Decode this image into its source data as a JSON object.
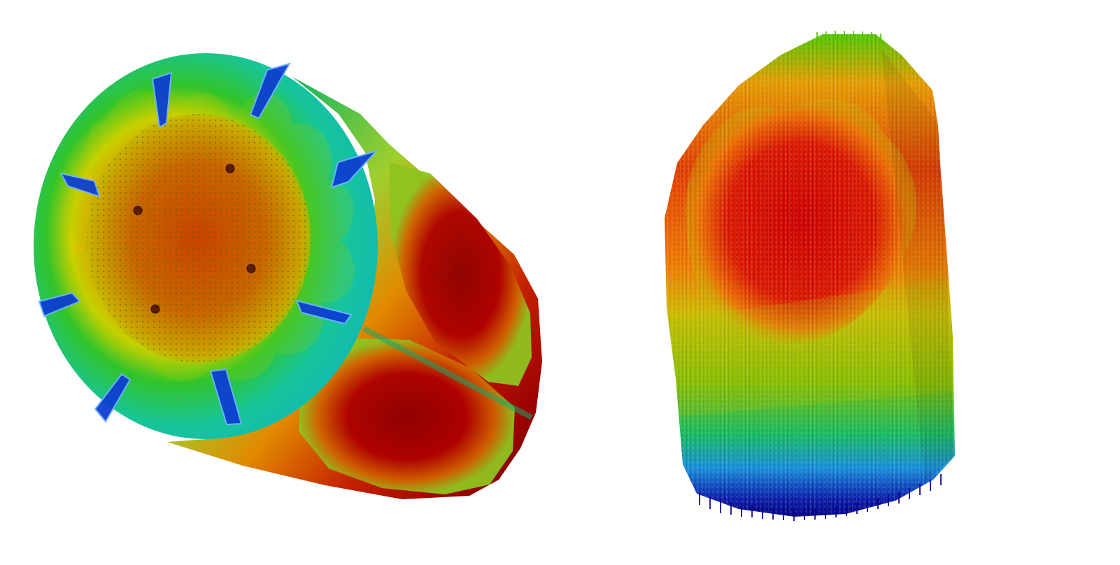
{
  "image": {
    "panels": [
      {
        "name": "cylinder-section-render",
        "colormap": [
          "#0a1fa8",
          "#2a8ad8",
          "#19c4a0",
          "#18c33a",
          "#b7d400",
          "#f7e000",
          "#ff7a00",
          "#d82000",
          "#7a0000"
        ]
      },
      {
        "name": "rod-bundle-render",
        "colormap": [
          "#0b0b9c",
          "#1c6ee0",
          "#10b5b5",
          "#22c32a",
          "#b5d100",
          "#f7d800",
          "#ff8a00",
          "#e02000",
          "#b10000"
        ]
      }
    ]
  }
}
